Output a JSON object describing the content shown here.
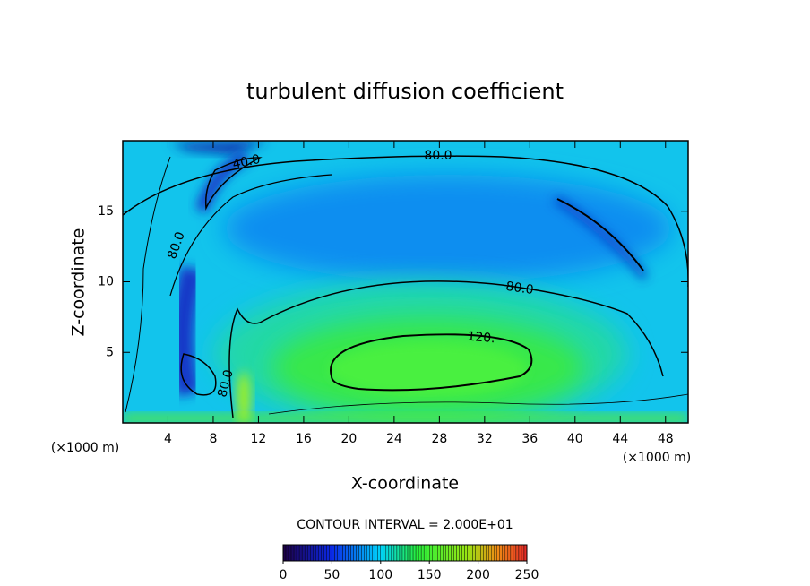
{
  "chart_data": {
    "type": "contour",
    "title": "turbulent diffusion coefficient",
    "x_label": "X-coordinate",
    "y_label": "Z-coordinate",
    "x_unit": "(×1000 m)",
    "y_unit": "(×1000 m)",
    "xlim": [
      0,
      50
    ],
    "ylim": [
      0,
      20
    ],
    "xticks": [
      4,
      8,
      12,
      16,
      20,
      24,
      28,
      32,
      36,
      40,
      44,
      48
    ],
    "yticks": [
      5,
      10,
      15
    ],
    "contours": [
      {
        "value": 40,
        "label": "40.0"
      },
      {
        "value": 80,
        "label": "80.0"
      },
      {
        "value": 120,
        "label": "120."
      }
    ],
    "colorbar": {
      "title": "CONTOUR INTERVAL = 2.000E+01",
      "lim": [
        0,
        250
      ],
      "ticks": [
        0,
        50,
        100,
        150,
        200,
        250
      ]
    }
  }
}
